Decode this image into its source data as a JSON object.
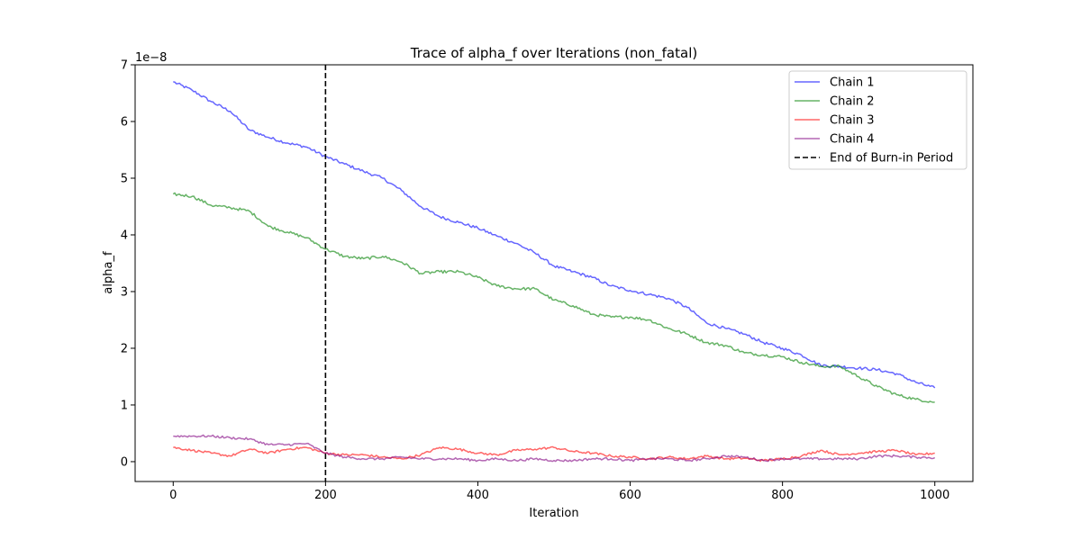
{
  "chart_data": {
    "type": "line",
    "title": "Trace of alpha_f over Iterations (non_fatal)",
    "xlabel": "Iteration",
    "ylabel": "alpha_f",
    "y_offset_text": "1e−8",
    "xlim": [
      -50,
      1050
    ],
    "ylim": [
      -0.35,
      7.0
    ],
    "x_ticks": [
      0,
      200,
      400,
      600,
      800,
      1000
    ],
    "y_ticks": [
      0,
      1,
      2,
      3,
      4,
      5,
      6,
      7
    ],
    "grid": false,
    "legend_position": "top-right",
    "series": [
      {
        "name": "Chain 1",
        "color": "#0000ff",
        "x": [
          0,
          25,
          50,
          75,
          100,
          125,
          150,
          175,
          200,
          225,
          250,
          275,
          300,
          325,
          350,
          375,
          400,
          425,
          450,
          475,
          500,
          525,
          550,
          575,
          600,
          625,
          650,
          675,
          700,
          725,
          750,
          775,
          800,
          825,
          850,
          875,
          900,
          925,
          950,
          975,
          1000
        ],
        "y": [
          6.7,
          6.55,
          6.35,
          6.18,
          5.85,
          5.72,
          5.62,
          5.55,
          5.38,
          5.25,
          5.12,
          5.0,
          4.78,
          4.5,
          4.32,
          4.22,
          4.12,
          3.98,
          3.85,
          3.68,
          3.45,
          3.35,
          3.25,
          3.1,
          3.02,
          2.95,
          2.88,
          2.72,
          2.45,
          2.35,
          2.25,
          2.1,
          2.0,
          1.88,
          1.7,
          1.68,
          1.65,
          1.62,
          1.55,
          1.4,
          1.3
        ]
      },
      {
        "name": "Chain 2",
        "color": "#008000",
        "x": [
          0,
          25,
          50,
          75,
          100,
          125,
          150,
          175,
          200,
          225,
          250,
          275,
          300,
          325,
          350,
          375,
          400,
          425,
          450,
          475,
          500,
          525,
          550,
          575,
          600,
          625,
          650,
          675,
          700,
          725,
          750,
          775,
          800,
          825,
          850,
          875,
          900,
          925,
          950,
          975,
          1000
        ],
        "y": [
          4.72,
          4.68,
          4.52,
          4.48,
          4.42,
          4.15,
          4.05,
          3.95,
          3.75,
          3.62,
          3.58,
          3.62,
          3.52,
          3.32,
          3.35,
          3.35,
          3.25,
          3.1,
          3.05,
          3.05,
          2.85,
          2.75,
          2.6,
          2.55,
          2.55,
          2.5,
          2.35,
          2.25,
          2.1,
          2.05,
          1.92,
          1.88,
          1.85,
          1.75,
          1.68,
          1.68,
          1.5,
          1.32,
          1.18,
          1.1,
          1.05
        ]
      },
      {
        "name": "Chain 3",
        "color": "#ff0000",
        "x": [
          0,
          25,
          50,
          75,
          100,
          125,
          150,
          175,
          200,
          225,
          250,
          275,
          300,
          325,
          350,
          375,
          400,
          425,
          450,
          475,
          500,
          525,
          550,
          575,
          600,
          625,
          650,
          675,
          700,
          725,
          750,
          775,
          800,
          825,
          850,
          875,
          900,
          925,
          950,
          975,
          1000
        ],
        "y": [
          0.25,
          0.2,
          0.15,
          0.1,
          0.22,
          0.15,
          0.22,
          0.25,
          0.15,
          0.12,
          0.12,
          0.08,
          0.05,
          0.12,
          0.25,
          0.22,
          0.15,
          0.12,
          0.2,
          0.22,
          0.25,
          0.18,
          0.15,
          0.1,
          0.08,
          0.05,
          0.08,
          0.05,
          0.1,
          0.05,
          0.06,
          0.02,
          0.05,
          0.1,
          0.2,
          0.12,
          0.15,
          0.18,
          0.2,
          0.12,
          0.15
        ]
      },
      {
        "name": "Chain 4",
        "color": "#800080",
        "x": [
          0,
          25,
          50,
          75,
          100,
          125,
          150,
          175,
          200,
          225,
          250,
          275,
          300,
          325,
          350,
          375,
          400,
          425,
          450,
          475,
          500,
          525,
          550,
          575,
          600,
          625,
          650,
          675,
          700,
          725,
          750,
          775,
          800,
          825,
          850,
          875,
          900,
          925,
          950,
          975,
          1000
        ],
        "y": [
          0.45,
          0.45,
          0.45,
          0.42,
          0.4,
          0.3,
          0.3,
          0.32,
          0.15,
          0.08,
          0.05,
          0.05,
          0.08,
          0.05,
          0.05,
          0.05,
          0.02,
          0.05,
          0.02,
          0.05,
          0.02,
          0.02,
          0.05,
          0.05,
          0.02,
          0.05,
          0.05,
          0.02,
          0.05,
          0.1,
          0.08,
          0.02,
          0.05,
          0.05,
          0.05,
          0.05,
          0.05,
          0.1,
          0.1,
          0.08,
          0.07
        ]
      }
    ],
    "vertical_line": {
      "x": 200,
      "name": "End of Burn-in Period",
      "color": "#000000",
      "style": "dashed"
    }
  }
}
